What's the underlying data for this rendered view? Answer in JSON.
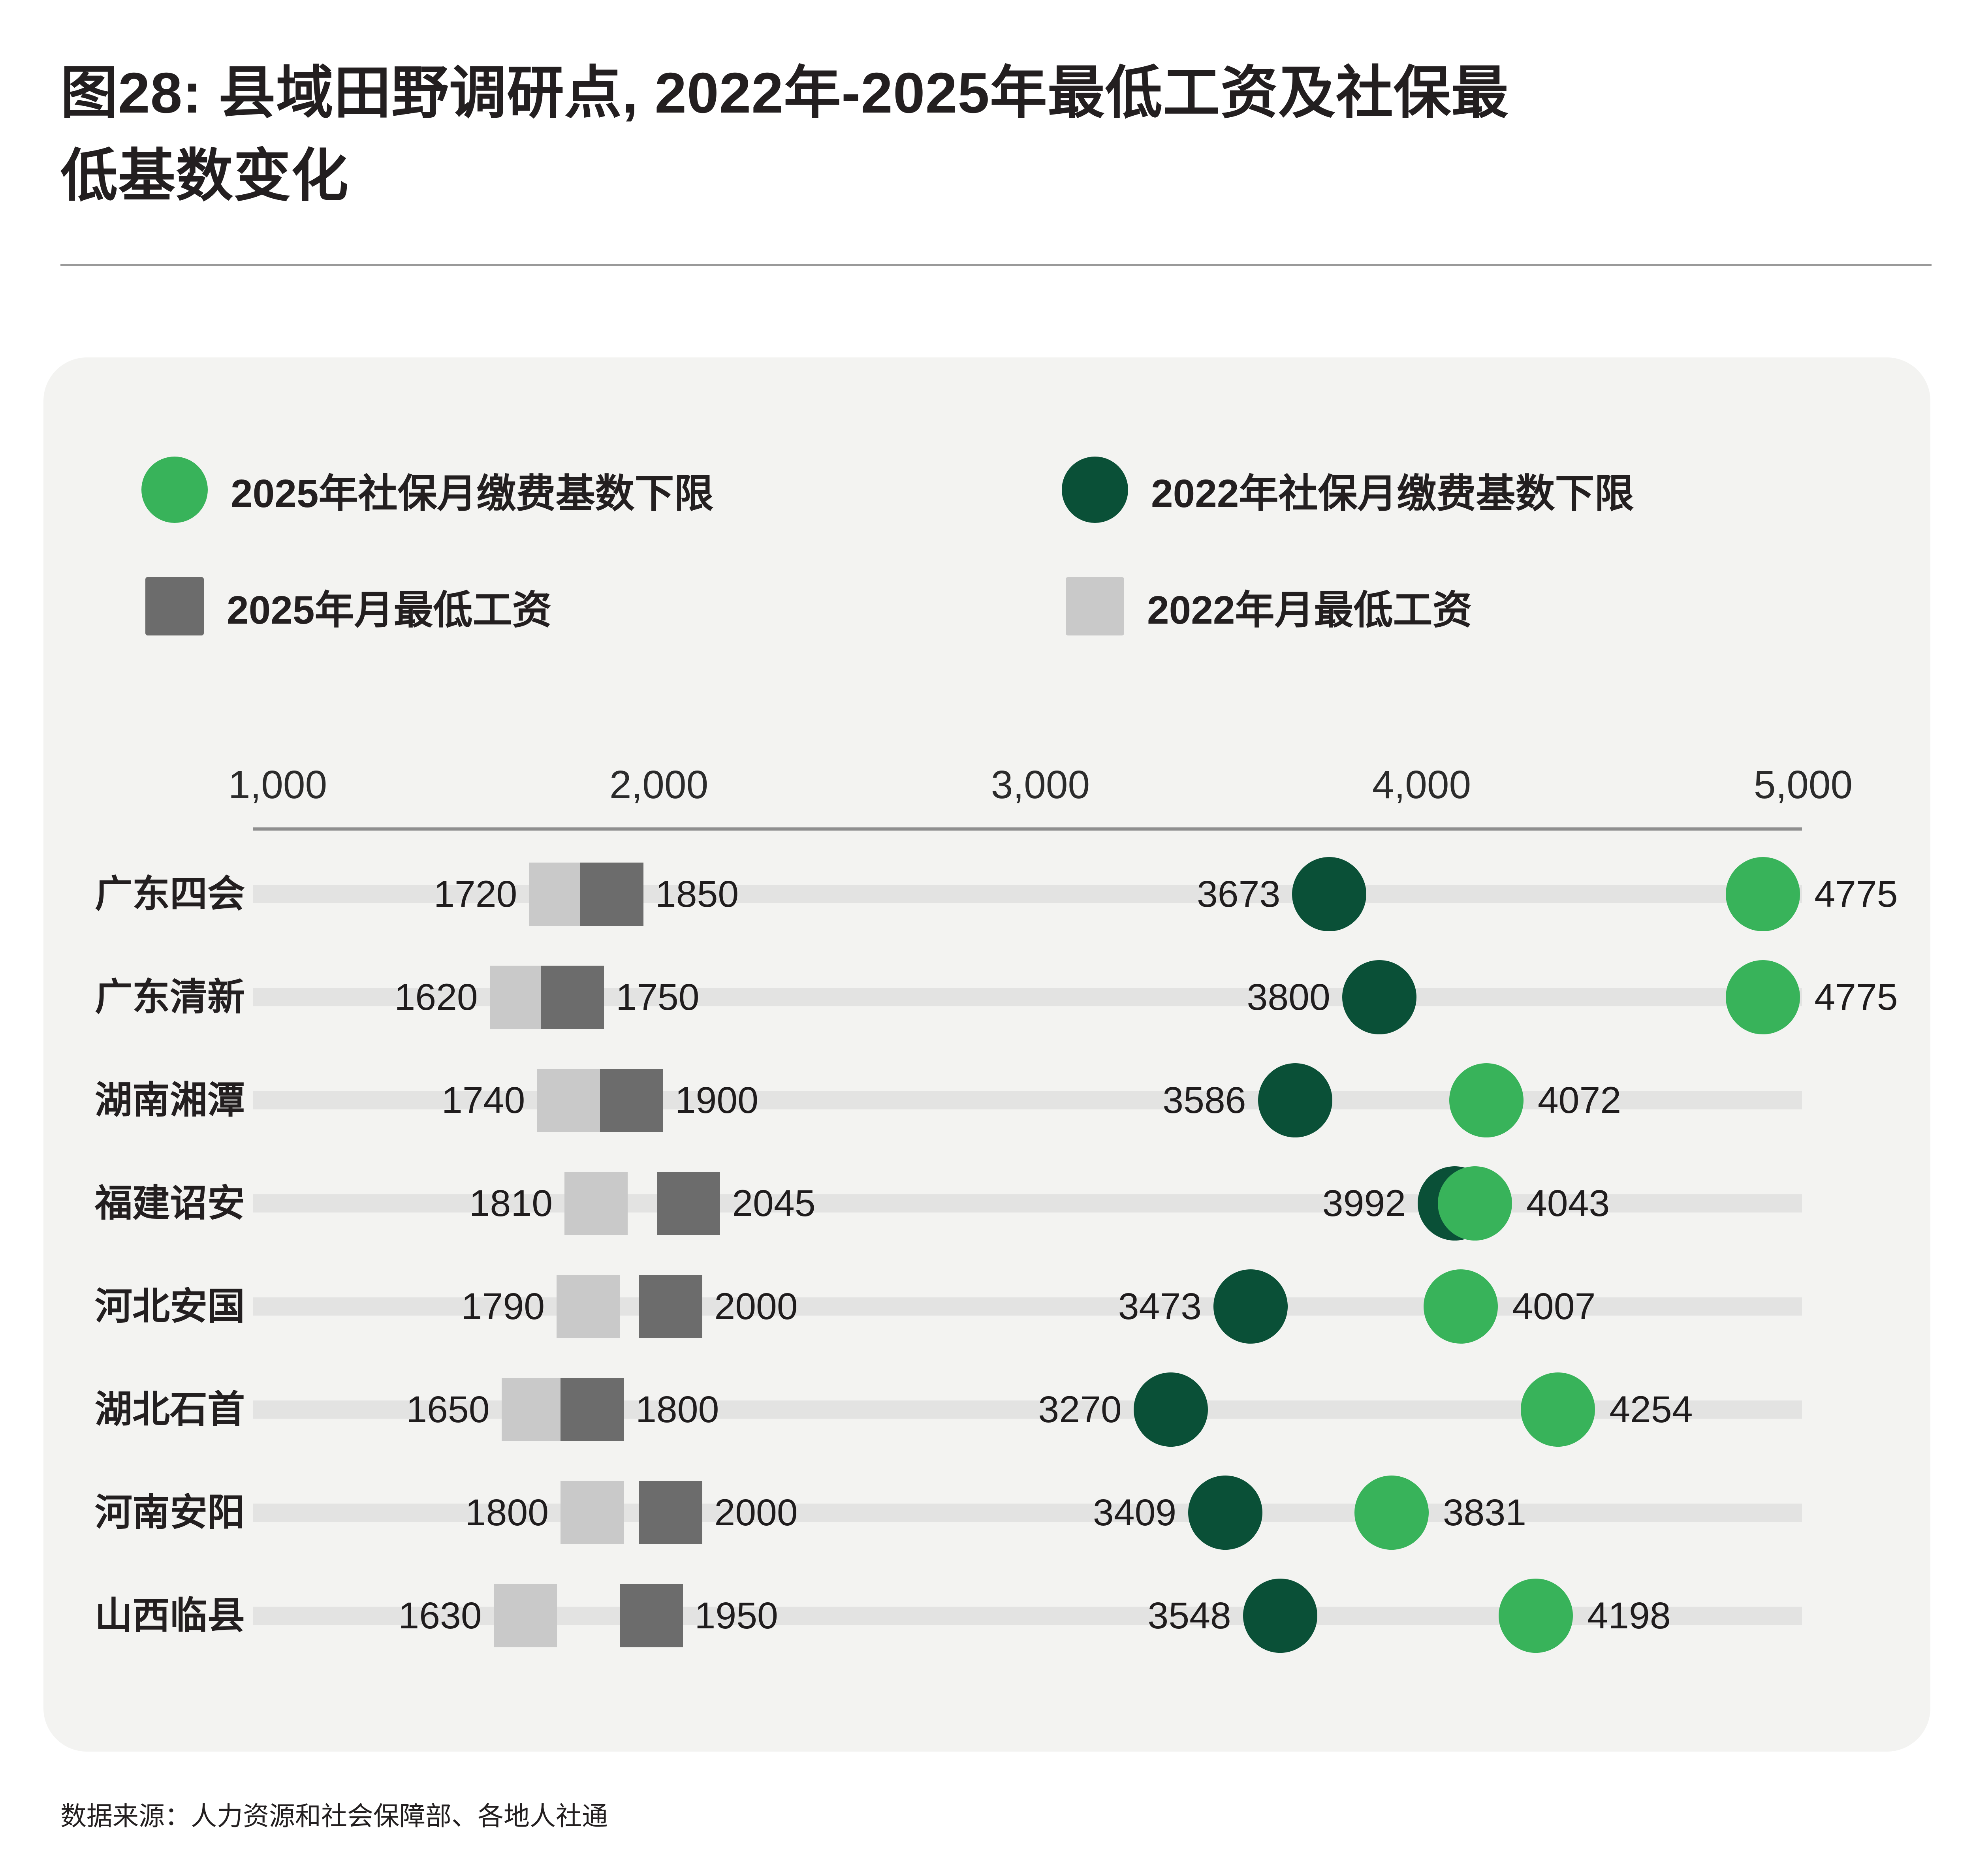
{
  "figure": {
    "title": "图28: 县域田野调研点, 2022年-2025年最低工资及社保最低基数变化",
    "title_lines": [
      "图28: 县域田野调研点, 2022年-2025年最低工资及社保最",
      "低基数变化"
    ],
    "source": "数据来源：人力资源和社会保障部、各地人社通"
  },
  "colors": {
    "green_2025": "#38b35a",
    "dark_green_2022": "#0a5037",
    "dark_gray_2025": "#6c6c6c",
    "light_gray_2022": "#c9c9c9",
    "track": "#e3e3e2",
    "card_bg": "#f3f3f1",
    "axis_line": "#8f8f8f",
    "text": "#231f20"
  },
  "legend": {
    "items": [
      {
        "label": "2025年社保月缴费基数下限",
        "marker": "circle",
        "color": "#38b35a"
      },
      {
        "label": "2022年社保月缴费基数下限",
        "marker": "circle",
        "color": "#0a5037"
      },
      {
        "label": "2025年月最低工资",
        "marker": "square",
        "color": "#6c6c6c"
      },
      {
        "label": "2022年月最低工资",
        "marker": "square",
        "color": "#c9c9c9"
      }
    ]
  },
  "chart_data": {
    "type": "scatter",
    "subtype": "dumbbell-dot-plot",
    "title": "图28: 县域田野调研点, 2022年-2025年最低工资及社保最低基数变化",
    "xlabel": "",
    "ylabel": "",
    "xlim": [
      1000,
      5000
    ],
    "grid": false,
    "legend_position": "top",
    "x_ticks": [
      {
        "value": 1000,
        "label": "1,000"
      },
      {
        "value": 2000,
        "label": "2,000"
      },
      {
        "value": 3000,
        "label": "3,000"
      },
      {
        "value": 4000,
        "label": "4,000"
      },
      {
        "value": 5000,
        "label": "5,000"
      }
    ],
    "categories": [
      "广东四会",
      "广东清新",
      "湖南湘潭",
      "福建诏安",
      "河北安国",
      "湖北石首",
      "河南安阳",
      "山西临县"
    ],
    "series": [
      {
        "name": "2022年月最低工资",
        "marker": "square",
        "color": "#c9c9c9",
        "values": [
          1720,
          1620,
          1740,
          1810,
          1790,
          1650,
          1800,
          1630
        ]
      },
      {
        "name": "2025年月最低工资",
        "marker": "square",
        "color": "#6c6c6c",
        "values": [
          1850,
          1750,
          1900,
          2045,
          2000,
          1800,
          2000,
          1950
        ]
      },
      {
        "name": "2022年社保月缴费基数下限",
        "marker": "circle",
        "color": "#0a5037",
        "values": [
          3673,
          3800,
          3586,
          3992,
          3473,
          3270,
          3409,
          3548
        ]
      },
      {
        "name": "2025年社保月缴费基数下限",
        "marker": "circle",
        "color": "#38b35a",
        "values": [
          4775,
          4775,
          4072,
          4043,
          4007,
          4254,
          3831,
          4198
        ]
      }
    ]
  }
}
